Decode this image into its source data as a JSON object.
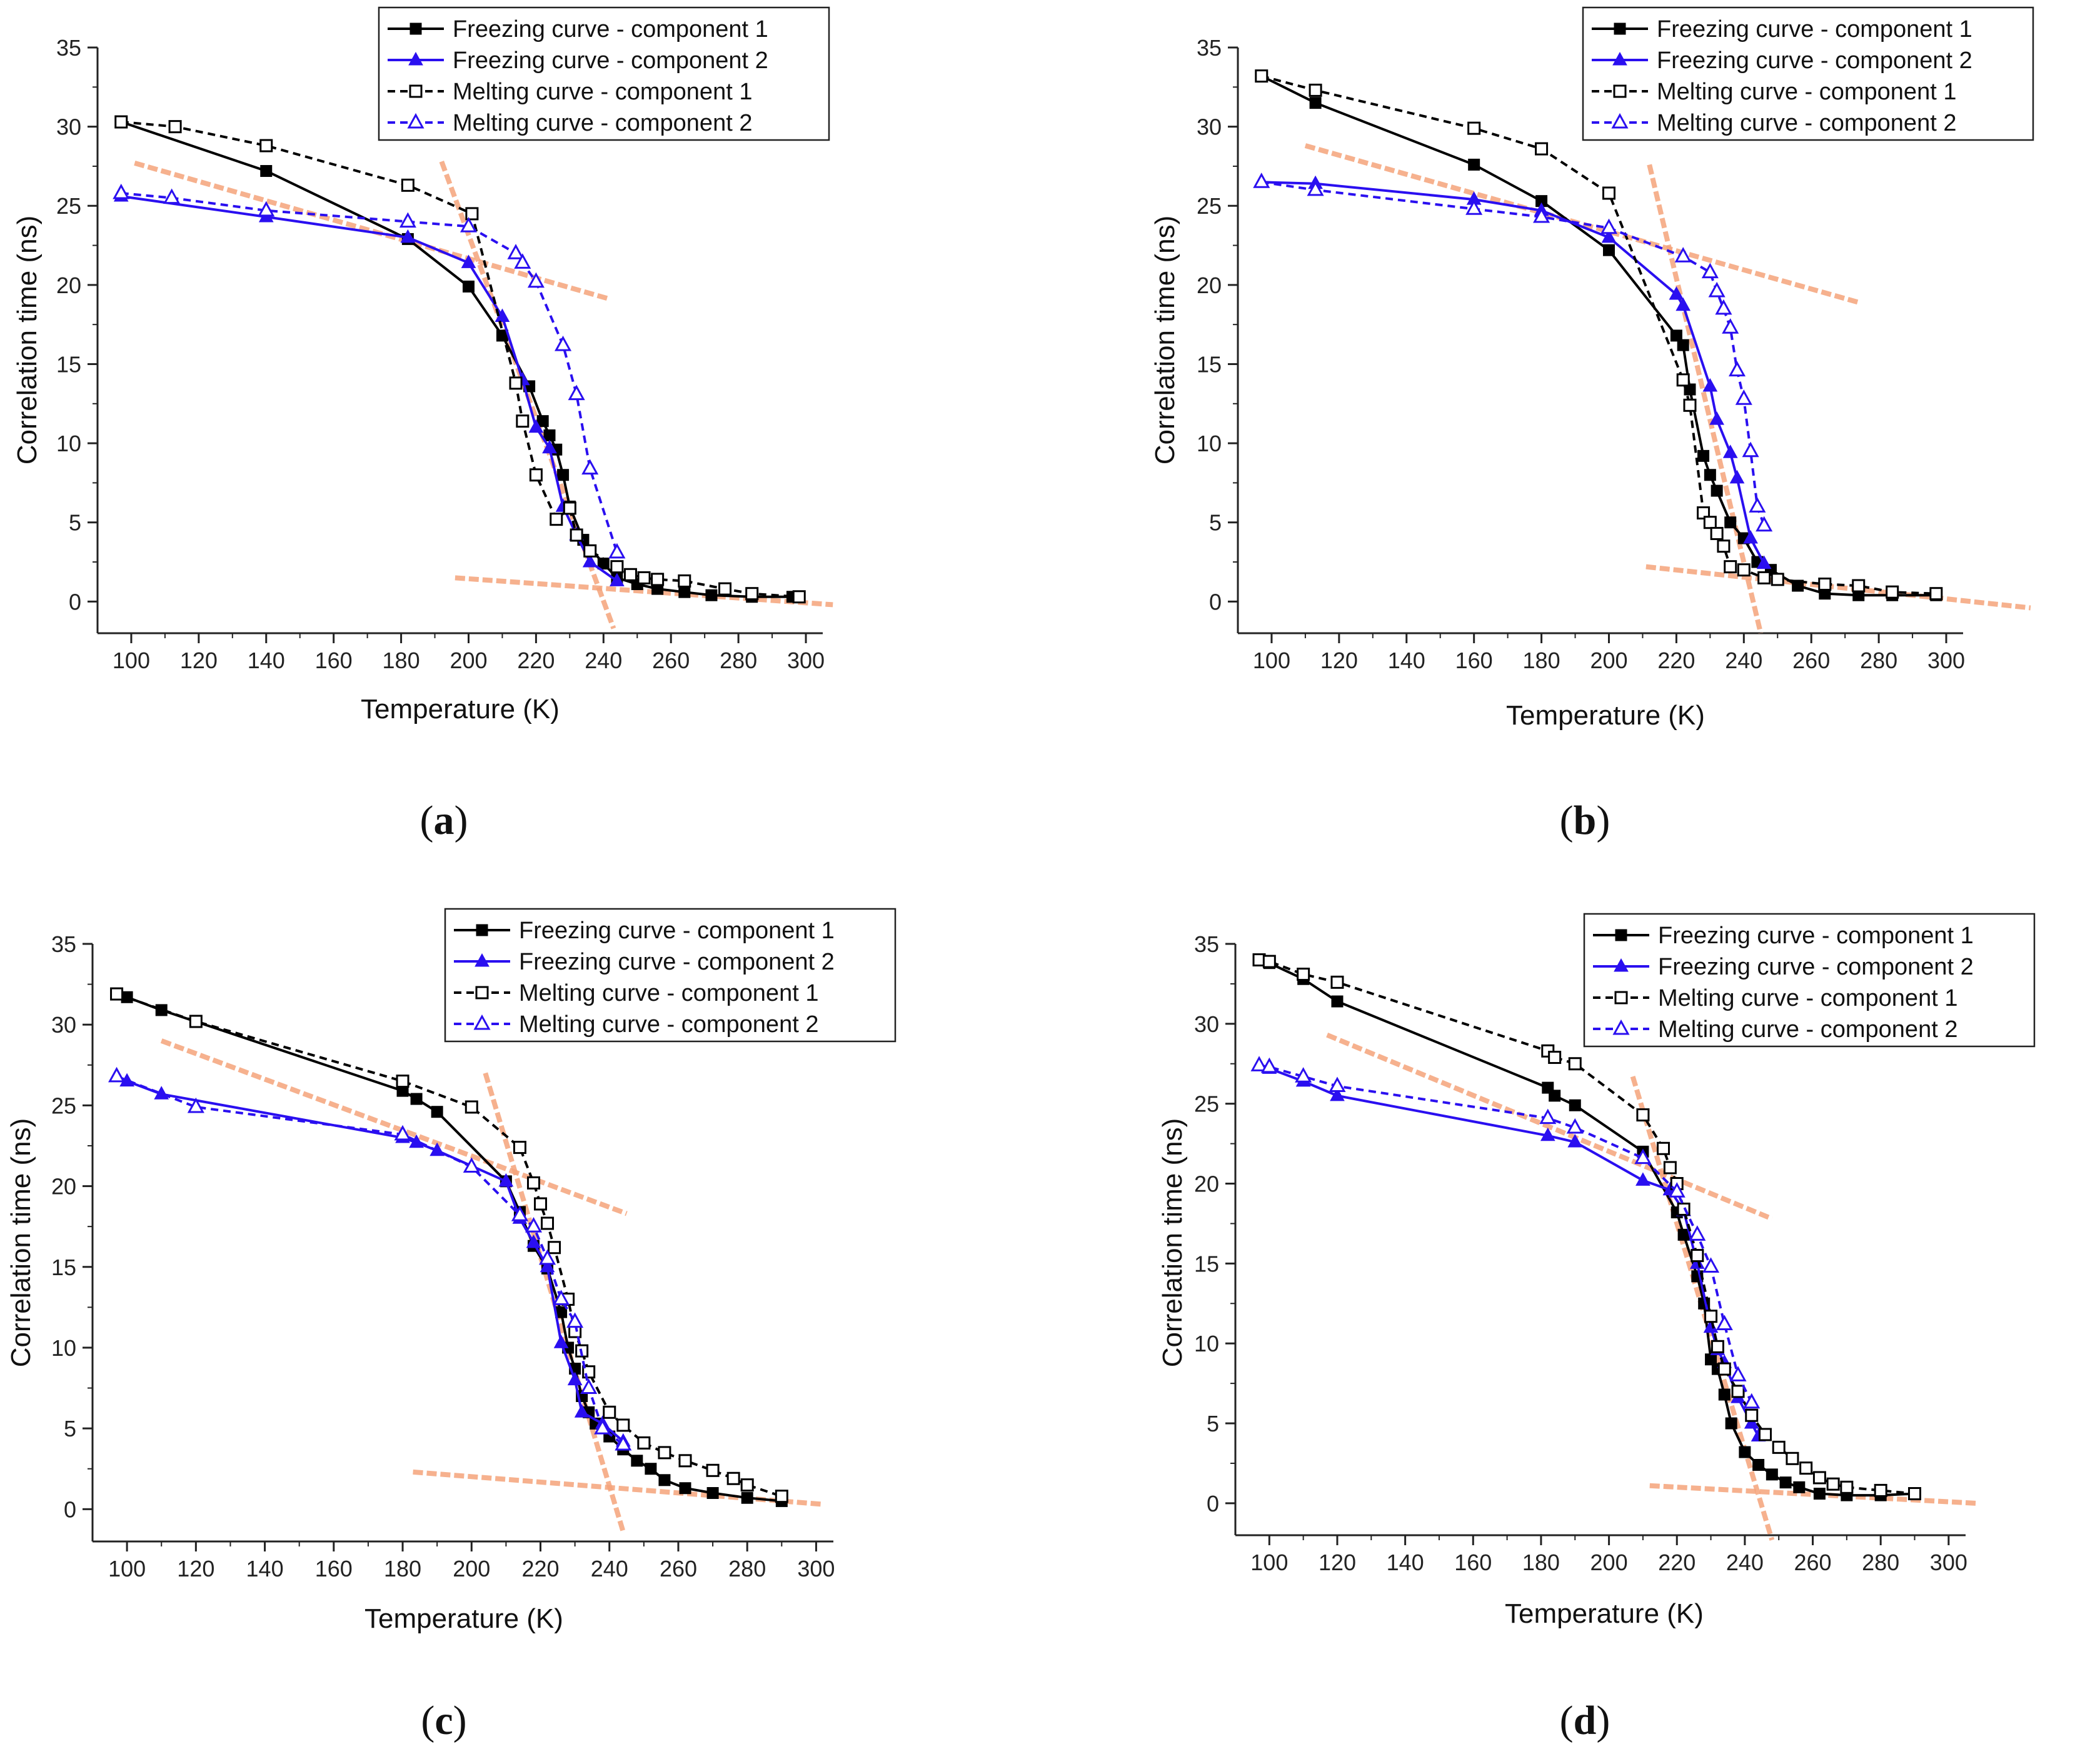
{
  "colors": {
    "freezing1": "#000000",
    "freezing2": "#2a0ff0",
    "melting1": "#000000",
    "melting2": "#2a0ff0",
    "fit": "#f4a37a"
  },
  "chart_data": [
    {
      "type": "line",
      "panel": "(a)",
      "panel_letter": "a",
      "xlabel": "Temperature (K)",
      "ylabel": "Correlation time (ns)",
      "xlim": [
        90,
        305
      ],
      "ylim": [
        -2,
        35
      ],
      "xticks": [
        100,
        120,
        140,
        160,
        180,
        200,
        220,
        240,
        260,
        280,
        300
      ],
      "yticks": [
        0,
        5,
        10,
        15,
        20,
        25,
        30,
        35
      ],
      "legend_position": "top-right",
      "series": [
        {
          "name": "Freezing curve - component 1",
          "style": "f1",
          "x": [
            97,
            140,
            182,
            200,
            210,
            218,
            222,
            224,
            226,
            228,
            230,
            234,
            240,
            244,
            250,
            256,
            264,
            272,
            284,
            296
          ],
          "y": [
            30.3,
            27.2,
            22.9,
            19.9,
            16.8,
            13.6,
            11.4,
            10.5,
            9.6,
            8.0,
            6.0,
            3.9,
            2.4,
            1.5,
            1.1,
            0.8,
            0.6,
            0.4,
            0.3,
            0.3
          ]
        },
        {
          "name": "Freezing curve - component 2",
          "style": "f2",
          "x": [
            97,
            140,
            182,
            200,
            210,
            216,
            220,
            224,
            228,
            232,
            236,
            244
          ],
          "y": [
            25.6,
            24.3,
            23.0,
            21.4,
            18.0,
            14.0,
            11.0,
            9.7,
            6.0,
            4.2,
            2.5,
            1.3
          ]
        },
        {
          "name": "Melting curve - component 1",
          "style": "m1",
          "x": [
            97,
            113,
            140,
            182,
            201,
            214,
            216,
            220,
            226,
            230,
            232,
            236,
            244,
            248,
            252,
            256,
            264,
            276,
            284,
            298
          ],
          "y": [
            30.3,
            30.0,
            28.8,
            26.3,
            24.5,
            13.8,
            11.4,
            8.0,
            5.2,
            5.9,
            4.2,
            3.2,
            2.2,
            1.7,
            1.5,
            1.4,
            1.3,
            0.8,
            0.5,
            0.3
          ]
        },
        {
          "name": "Melting curve - component 2",
          "style": "m2",
          "x": [
            97,
            112,
            140,
            182,
            200,
            214,
            216,
            220,
            228,
            232,
            236,
            244
          ],
          "y": [
            25.8,
            25.5,
            24.7,
            24.0,
            23.7,
            22.0,
            21.4,
            20.2,
            16.2,
            13.1,
            8.4,
            3.1
          ]
        }
      ],
      "fit_lines": [
        {
          "x": [
            101,
            242
          ],
          "y": [
            27.7,
            19.1
          ]
        },
        {
          "x": [
            192,
            243
          ],
          "y": [
            27.8,
            -1.7
          ]
        },
        {
          "x": [
            196,
            308
          ],
          "y": [
            1.5,
            -0.2
          ]
        }
      ]
    },
    {
      "type": "line",
      "panel": "(b)",
      "panel_letter": "b",
      "xlabel": "Temperature (K)",
      "ylabel": "Correlation time (ns)",
      "xlim": [
        90,
        305
      ],
      "ylim": [
        -2,
        35
      ],
      "xticks": [
        100,
        120,
        140,
        160,
        180,
        200,
        220,
        240,
        260,
        280,
        300
      ],
      "yticks": [
        0,
        5,
        10,
        15,
        20,
        25,
        30,
        35
      ],
      "legend_position": "top-right",
      "series": [
        {
          "name": "Freezing curve - component 1",
          "style": "f1",
          "x": [
            97,
            113,
            160,
            180,
            200,
            220,
            222,
            224,
            228,
            230,
            232,
            236,
            240,
            244,
            248,
            256,
            264,
            274,
            284,
            297
          ],
          "y": [
            33.2,
            31.5,
            27.6,
            25.3,
            22.2,
            16.8,
            16.2,
            13.4,
            9.2,
            8.0,
            7.0,
            5.0,
            4.0,
            2.5,
            2.0,
            1.0,
            0.5,
            0.4,
            0.4,
            0.4
          ]
        },
        {
          "name": "Freezing curve - component 2",
          "style": "f2",
          "x": [
            97,
            113,
            160,
            180,
            200,
            220,
            222,
            230,
            232,
            236,
            238,
            242,
            246
          ],
          "y": [
            26.5,
            26.4,
            25.4,
            24.7,
            23.0,
            19.4,
            18.7,
            13.6,
            11.5,
            9.4,
            7.8,
            4.0,
            2.4
          ]
        },
        {
          "name": "Melting curve - component 1",
          "style": "m1",
          "x": [
            97,
            113,
            160,
            180,
            200,
            222,
            224,
            228,
            230,
            232,
            234,
            236,
            240,
            246,
            250,
            264,
            274,
            284,
            297
          ],
          "y": [
            33.2,
            32.3,
            29.9,
            28.6,
            25.8,
            14.0,
            12.4,
            5.6,
            5.0,
            4.3,
            3.5,
            2.2,
            2.0,
            1.5,
            1.4,
            1.1,
            1.0,
            0.6,
            0.5
          ]
        },
        {
          "name": "Melting curve - component 2",
          "style": "m2",
          "x": [
            97,
            113,
            160,
            180,
            200,
            222,
            230,
            232,
            234,
            236,
            238,
            240,
            242,
            244,
            246
          ],
          "y": [
            26.5,
            26.0,
            24.8,
            24.3,
            23.6,
            21.8,
            20.8,
            19.6,
            18.5,
            17.3,
            14.6,
            12.8,
            9.5,
            6.0,
            4.8
          ]
        }
      ],
      "fit_lines": [
        {
          "x": [
            110,
            274
          ],
          "y": [
            28.8,
            18.9
          ]
        },
        {
          "x": [
            212,
            245
          ],
          "y": [
            27.6,
            -2.0
          ]
        },
        {
          "x": [
            211,
            325
          ],
          "y": [
            2.2,
            -0.4
          ]
        }
      ]
    },
    {
      "type": "line",
      "panel": "(c)",
      "panel_letter": "c",
      "xlabel": "Temperature (K)",
      "ylabel": "Correlation time (ns)",
      "xlim": [
        90,
        305
      ],
      "ylim": [
        -2,
        35
      ],
      "xticks": [
        100,
        120,
        140,
        160,
        180,
        200,
        220,
        240,
        260,
        280,
        300
      ],
      "yticks": [
        0,
        5,
        10,
        15,
        20,
        25,
        30,
        35
      ],
      "legend_position": "top-right",
      "series": [
        {
          "name": "Freezing curve - component 1",
          "style": "f1",
          "x": [
            97,
            100,
            110,
            180,
            184,
            190,
            210,
            214,
            218,
            222,
            226,
            228,
            230,
            232,
            234,
            236,
            240,
            244,
            248,
            252,
            256,
            262,
            270,
            280,
            290
          ],
          "y": [
            31.9,
            31.7,
            30.9,
            25.9,
            25.4,
            24.6,
            20.3,
            18.4,
            16.3,
            14.9,
            12.2,
            10.0,
            8.7,
            7.0,
            6.0,
            5.3,
            4.5,
            3.7,
            3.0,
            2.5,
            1.8,
            1.3,
            1.0,
            0.7,
            0.5
          ]
        },
        {
          "name": "Freezing curve - component 2",
          "style": "f2",
          "x": [
            97,
            100,
            110,
            180,
            184,
            190,
            210,
            214,
            218,
            222,
            226,
            230,
            232,
            238,
            244
          ],
          "y": [
            26.8,
            26.5,
            25.7,
            23.0,
            22.7,
            22.2,
            20.3,
            18.0,
            16.5,
            15.0,
            10.3,
            8.0,
            6.0,
            5.3,
            4.2
          ]
        },
        {
          "name": "Melting curve - component 1",
          "style": "m1",
          "x": [
            97,
            120,
            180,
            200,
            214,
            218,
            220,
            222,
            224,
            228,
            230,
            232,
            234,
            240,
            244,
            250,
            256,
            262,
            270,
            276,
            280,
            290
          ],
          "y": [
            31.9,
            30.2,
            26.5,
            24.9,
            22.4,
            20.2,
            18.9,
            17.7,
            16.2,
            13.0,
            11.0,
            9.8,
            8.5,
            6.0,
            5.2,
            4.1,
            3.5,
            3.0,
            2.4,
            1.9,
            1.5,
            0.8
          ]
        },
        {
          "name": "Melting curve - component 2",
          "style": "m2",
          "x": [
            97,
            120,
            180,
            200,
            214,
            218,
            222,
            226,
            230,
            234,
            238,
            244
          ],
          "y": [
            26.8,
            24.9,
            23.2,
            21.2,
            18.2,
            17.5,
            15.5,
            13.0,
            11.6,
            7.5,
            5.0,
            4.0
          ]
        }
      ],
      "fit_lines": [
        {
          "x": [
            110,
            245
          ],
          "y": [
            29.0,
            18.3
          ]
        },
        {
          "x": [
            204,
            244
          ],
          "y": [
            27.0,
            -1.4
          ]
        },
        {
          "x": [
            183,
            302
          ],
          "y": [
            2.3,
            0.3
          ]
        }
      ]
    },
    {
      "type": "line",
      "panel": "(d)",
      "panel_letter": "d",
      "xlabel": "Temperature (K)",
      "ylabel": "Correlation time (ns)",
      "xlim": [
        90,
        305
      ],
      "ylim": [
        -2,
        35
      ],
      "xticks": [
        100,
        120,
        140,
        160,
        180,
        200,
        220,
        240,
        260,
        280,
        300
      ],
      "yticks": [
        0,
        5,
        10,
        15,
        20,
        25,
        30,
        35
      ],
      "legend_position": "top-right",
      "series": [
        {
          "name": "Freezing curve - component 1",
          "style": "f1",
          "x": [
            97,
            100,
            110,
            120,
            182,
            184,
            190,
            210,
            220,
            222,
            226,
            228,
            230,
            232,
            234,
            236,
            240,
            244,
            248,
            252,
            256,
            262,
            270,
            280,
            290
          ],
          "y": [
            34.0,
            33.8,
            32.8,
            31.4,
            26.0,
            25.5,
            24.9,
            22.0,
            18.2,
            16.8,
            14.2,
            12.5,
            9.0,
            8.4,
            6.8,
            5.0,
            3.2,
            2.4,
            1.8,
            1.3,
            1.0,
            0.6,
            0.5,
            0.5,
            0.6
          ]
        },
        {
          "name": "Freezing curve - component 2",
          "style": "f2",
          "x": [
            97,
            100,
            110,
            120,
            182,
            190,
            210,
            218,
            222,
            226,
            230,
            232,
            234,
            238,
            242,
            244
          ],
          "y": [
            27.4,
            27.2,
            26.4,
            25.5,
            23.0,
            22.6,
            20.2,
            19.6,
            18.3,
            15.0,
            11.0,
            9.6,
            8.8,
            6.6,
            5.0,
            4.2
          ]
        },
        {
          "name": "Melting curve - component 1",
          "style": "m1",
          "x": [
            97,
            100,
            110,
            120,
            182,
            184,
            190,
            210,
            216,
            218,
            220,
            222,
            226,
            230,
            232,
            234,
            238,
            242,
            246,
            250,
            254,
            258,
            262,
            266,
            270,
            280,
            290
          ],
          "y": [
            34.0,
            33.9,
            33.1,
            32.6,
            28.3,
            27.9,
            27.5,
            24.3,
            22.2,
            21.0,
            20.0,
            18.4,
            15.5,
            11.7,
            9.8,
            8.4,
            7.0,
            5.5,
            4.3,
            3.5,
            2.8,
            2.2,
            1.6,
            1.2,
            1.0,
            0.8,
            0.6
          ]
        },
        {
          "name": "Melting curve - component 2",
          "style": "m2",
          "x": [
            97,
            100,
            110,
            120,
            182,
            190,
            210,
            220,
            226,
            230,
            234,
            238,
            242
          ],
          "y": [
            27.4,
            27.3,
            26.7,
            26.1,
            24.1,
            23.5,
            21.6,
            19.5,
            16.8,
            14.8,
            11.2,
            8.0,
            6.3
          ]
        }
      ],
      "fit_lines": [
        {
          "x": [
            117,
            248
          ],
          "y": [
            29.3,
            17.8
          ]
        },
        {
          "x": [
            207,
            248
          ],
          "y": [
            26.7,
            -2.3
          ]
        },
        {
          "x": [
            212,
            308
          ],
          "y": [
            1.1,
            0.0
          ]
        }
      ]
    }
  ]
}
